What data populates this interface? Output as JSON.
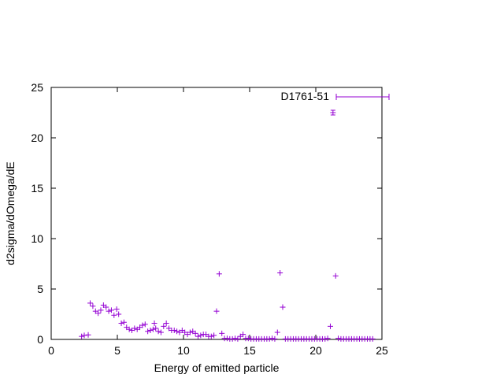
{
  "chart_data": {
    "type": "scatter",
    "xlabel": "Energy of emitted particle",
    "ylabel": "d2sigma/dOmega/dE",
    "xlim": [
      0,
      25
    ],
    "ylim": [
      0,
      25
    ],
    "xticks": [
      "0",
      "5",
      "10",
      "15",
      "20",
      "25"
    ],
    "yticks": [
      "0",
      "5",
      "10",
      "15",
      "20",
      "25"
    ],
    "grid": false,
    "legend_position": "top-right",
    "series": [
      {
        "name": "D1761-51",
        "color": "#9400d3",
        "error_bars": true,
        "points": [
          [
            2.3,
            0.3
          ],
          [
            2.5,
            0.4
          ],
          [
            2.8,
            0.45
          ],
          [
            2.95,
            3.6
          ],
          [
            3.15,
            3.3
          ],
          [
            3.35,
            2.8
          ],
          [
            3.55,
            2.6
          ],
          [
            3.75,
            2.9
          ],
          [
            3.95,
            3.4
          ],
          [
            4.15,
            3.2
          ],
          [
            4.35,
            2.8
          ],
          [
            4.55,
            2.9
          ],
          [
            4.75,
            2.4
          ],
          [
            4.95,
            3.0
          ],
          [
            5.1,
            2.5
          ],
          [
            5.3,
            1.6
          ],
          [
            5.5,
            1.7
          ],
          [
            5.7,
            1.2
          ],
          [
            5.9,
            1.0
          ],
          [
            6.1,
            0.9
          ],
          [
            6.3,
            1.1
          ],
          [
            6.5,
            1.0
          ],
          [
            6.7,
            1.2
          ],
          [
            6.9,
            1.4
          ],
          [
            7.1,
            1.5
          ],
          [
            7.3,
            0.8
          ],
          [
            7.5,
            0.9
          ],
          [
            7.7,
            1.0
          ],
          [
            7.8,
            1.6
          ],
          [
            7.9,
            1.1
          ],
          [
            8.1,
            0.8
          ],
          [
            8.3,
            0.7
          ],
          [
            8.5,
            1.3
          ],
          [
            8.7,
            1.6
          ],
          [
            8.9,
            1.1
          ],
          [
            9.1,
            0.9
          ],
          [
            9.3,
            0.9
          ],
          [
            9.5,
            0.8
          ],
          [
            9.7,
            0.7
          ],
          [
            9.9,
            0.9
          ],
          [
            10.1,
            0.7
          ],
          [
            10.3,
            0.5
          ],
          [
            10.5,
            0.7
          ],
          [
            10.7,
            0.8
          ],
          [
            10.9,
            0.6
          ],
          [
            11.1,
            0.3
          ],
          [
            11.3,
            0.4
          ],
          [
            11.5,
            0.5
          ],
          [
            11.7,
            0.5
          ],
          [
            11.9,
            0.3
          ],
          [
            12.1,
            0.3
          ],
          [
            12.3,
            0.4
          ],
          [
            12.5,
            2.8
          ],
          [
            12.7,
            6.5
          ],
          [
            12.9,
            0.6
          ],
          [
            13.1,
            0.1
          ],
          [
            13.3,
            0.1
          ],
          [
            13.5,
            0.05
          ],
          [
            13.7,
            0.05
          ],
          [
            13.9,
            0.1
          ],
          [
            14.1,
            0.05
          ],
          [
            14.3,
            0.3
          ],
          [
            14.5,
            0.5
          ],
          [
            14.7,
            0.1
          ],
          [
            14.9,
            0.1
          ],
          [
            15.1,
            0.05
          ],
          [
            15.3,
            0.05
          ],
          [
            15.5,
            0.05
          ],
          [
            15.7,
            0.05
          ],
          [
            15.9,
            0.05
          ],
          [
            16.1,
            0.05
          ],
          [
            16.3,
            0.05
          ],
          [
            16.5,
            0.05
          ],
          [
            16.7,
            0.1
          ],
          [
            16.9,
            0.05
          ],
          [
            17.1,
            0.7
          ],
          [
            17.3,
            6.6
          ],
          [
            17.5,
            3.2
          ],
          [
            17.7,
            0.05
          ],
          [
            17.9,
            0.05
          ],
          [
            18.1,
            0.05
          ],
          [
            18.3,
            0.05
          ],
          [
            18.5,
            0.05
          ],
          [
            18.7,
            0.05
          ],
          [
            18.9,
            0.05
          ],
          [
            19.1,
            0.05
          ],
          [
            19.3,
            0.05
          ],
          [
            19.5,
            0.05
          ],
          [
            19.7,
            0.05
          ],
          [
            19.9,
            0.05
          ],
          [
            20.1,
            0.05
          ],
          [
            20.3,
            0.05
          ],
          [
            20.5,
            0.05
          ],
          [
            20.7,
            0.05
          ],
          [
            20.9,
            0.1
          ],
          [
            21.1,
            1.3
          ],
          [
            21.3,
            22.5
          ],
          [
            21.5,
            6.3
          ],
          [
            21.7,
            0.1
          ],
          [
            21.9,
            0.05
          ],
          [
            22.1,
            0.05
          ],
          [
            22.3,
            0.05
          ],
          [
            22.5,
            0.05
          ],
          [
            22.7,
            0.05
          ],
          [
            22.9,
            0.05
          ],
          [
            23.1,
            0.05
          ],
          [
            23.3,
            0.05
          ],
          [
            23.5,
            0.05
          ],
          [
            23.7,
            0.05
          ],
          [
            23.9,
            0.05
          ],
          [
            24.1,
            0.05
          ],
          [
            24.3,
            0.05
          ]
        ]
      }
    ]
  }
}
